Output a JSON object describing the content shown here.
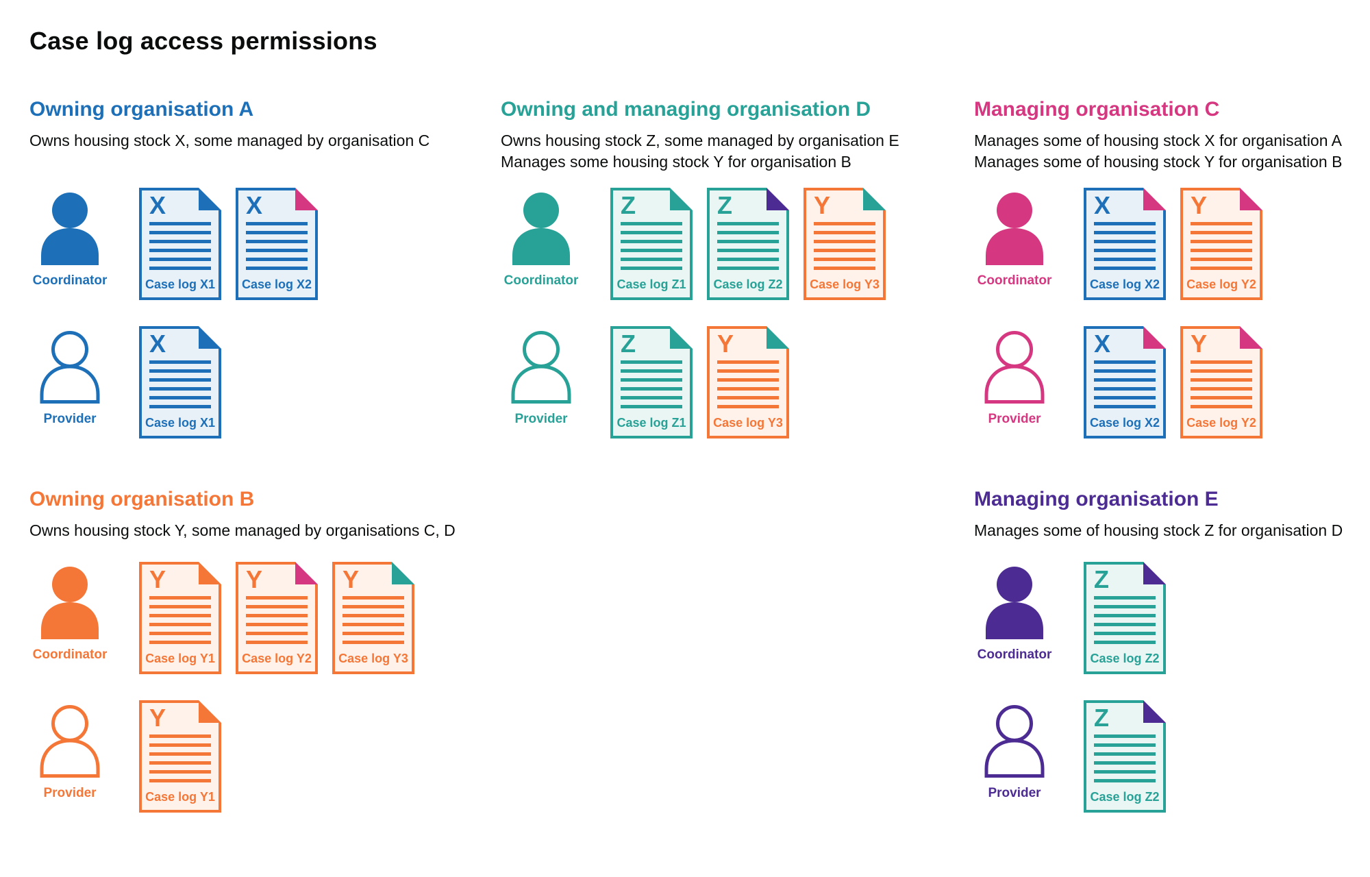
{
  "title": "Case log access permissions",
  "colors": {
    "blue": "#1d70b8",
    "teal": "#28a197",
    "orange": "#f47738",
    "pink": "#d53880",
    "purple": "#4c2c92",
    "text": "#0b0c0c"
  },
  "tints": {
    "blue": "#e9f1f8",
    "teal": "#eaf6f3",
    "orange": "#fef2ea"
  },
  "sections": [
    {
      "id": "org-a",
      "heading": "Owning organisation A",
      "color": "blue",
      "description": [
        "Owns housing stock X, some managed by organisation C"
      ],
      "rows": [
        {
          "role": "Coordinator",
          "person_style": "filled",
          "docs": [
            {
              "letter": "X",
              "label": "Case log X1",
              "doc_color": "blue",
              "fold_color": "blue"
            },
            {
              "letter": "X",
              "label": "Case log X2",
              "doc_color": "blue",
              "fold_color": "pink"
            }
          ]
        },
        {
          "role": "Provider",
          "person_style": "outline",
          "docs": [
            {
              "letter": "X",
              "label": "Case log X1",
              "doc_color": "blue",
              "fold_color": "blue"
            }
          ]
        }
      ]
    },
    {
      "id": "org-d",
      "heading": "Owning and managing organisation D",
      "color": "teal",
      "description": [
        "Owns housing stock Z, some managed by organisation E",
        "Manages some housing stock Y for organisation B"
      ],
      "rows": [
        {
          "role": "Coordinator",
          "person_style": "filled",
          "docs": [
            {
              "letter": "Z",
              "label": "Case log Z1",
              "doc_color": "teal",
              "fold_color": "teal"
            },
            {
              "letter": "Z",
              "label": "Case log Z2",
              "doc_color": "teal",
              "fold_color": "purple"
            },
            {
              "letter": "Y",
              "label": "Case log Y3",
              "doc_color": "orange",
              "fold_color": "teal"
            }
          ]
        },
        {
          "role": "Provider",
          "person_style": "outline",
          "docs": [
            {
              "letter": "Z",
              "label": "Case log Z1",
              "doc_color": "teal",
              "fold_color": "teal"
            },
            {
              "letter": "Y",
              "label": "Case log Y3",
              "doc_color": "orange",
              "fold_color": "teal"
            }
          ]
        }
      ]
    },
    {
      "id": "org-c",
      "heading": "Managing organisation C",
      "color": "pink",
      "description": [
        "Manages some of housing stock X for organisation A",
        "Manages some of housing stock Y for organisation B"
      ],
      "rows": [
        {
          "role": "Coordinator",
          "person_style": "filled",
          "docs": [
            {
              "letter": "X",
              "label": "Case log X2",
              "doc_color": "blue",
              "fold_color": "pink"
            },
            {
              "letter": "Y",
              "label": "Case log Y2",
              "doc_color": "orange",
              "fold_color": "pink"
            }
          ]
        },
        {
          "role": "Provider",
          "person_style": "outline",
          "docs": [
            {
              "letter": "X",
              "label": "Case log X2",
              "doc_color": "blue",
              "fold_color": "pink"
            },
            {
              "letter": "Y",
              "label": "Case log Y2",
              "doc_color": "orange",
              "fold_color": "pink"
            }
          ]
        }
      ]
    },
    {
      "id": "org-b",
      "heading": "Owning organisation B",
      "color": "orange",
      "description": [
        "Owns housing stock Y, some managed by organisations C, D"
      ],
      "rows": [
        {
          "role": "Coordinator",
          "person_style": "filled",
          "docs": [
            {
              "letter": "Y",
              "label": "Case log Y1",
              "doc_color": "orange",
              "fold_color": "orange"
            },
            {
              "letter": "Y",
              "label": "Case log Y2",
              "doc_color": "orange",
              "fold_color": "pink"
            },
            {
              "letter": "Y",
              "label": "Case log Y3",
              "doc_color": "orange",
              "fold_color": "teal"
            }
          ]
        },
        {
          "role": "Provider",
          "person_style": "outline",
          "docs": [
            {
              "letter": "Y",
              "label": "Case log Y1",
              "doc_color": "orange",
              "fold_color": "orange"
            }
          ]
        }
      ]
    },
    {
      "id": "org-e",
      "heading": "Managing organisation E",
      "color": "purple",
      "description": [
        "Manages some of housing stock Z for organisation D"
      ],
      "rows": [
        {
          "role": "Coordinator",
          "person_style": "filled",
          "docs": [
            {
              "letter": "Z",
              "label": "Case log Z2",
              "doc_color": "teal",
              "fold_color": "purple"
            }
          ]
        },
        {
          "role": "Provider",
          "person_style": "outline",
          "docs": [
            {
              "letter": "Z",
              "label": "Case log Z2",
              "doc_color": "teal",
              "fold_color": "purple"
            }
          ]
        }
      ]
    }
  ]
}
